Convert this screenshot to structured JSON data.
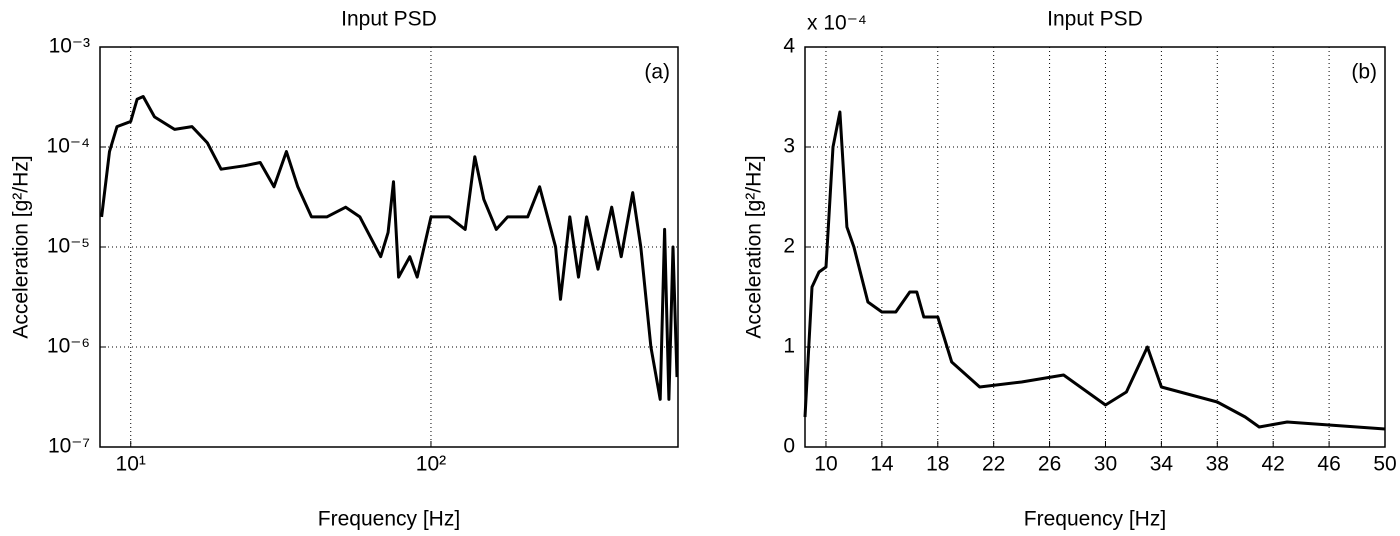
{
  "chart_data": [
    {
      "type": "line",
      "title": "Input PSD",
      "x_label": "Frequency [Hz]",
      "y_label": "Acceleration [g²/Hz]",
      "annotation": "(a)",
      "xscale": "log",
      "yscale": "log",
      "grid": true,
      "color": "#000000",
      "xlim": [
        7.9,
        665
      ],
      "ylim": [
        1e-07,
        0.001
      ],
      "xticks": [
        {
          "value": 10,
          "label": "10¹"
        },
        {
          "value": 100,
          "label": "10²"
        }
      ],
      "yticks": [
        {
          "value": 1e-07,
          "label": "10⁻⁷"
        },
        {
          "value": 1e-06,
          "label": "10⁻⁶"
        },
        {
          "value": 1e-05,
          "label": "10⁻⁵"
        },
        {
          "value": 0.0001,
          "label": "10⁻⁴"
        },
        {
          "value": 0.001,
          "label": "10⁻³"
        }
      ],
      "x": [
        8,
        8.5,
        9,
        10,
        10.5,
        11,
        12,
        14,
        16,
        18,
        20,
        24,
        27,
        30,
        33,
        36,
        40,
        45,
        52,
        58,
        68,
        72,
        75,
        78,
        85,
        90,
        100,
        115,
        130,
        140,
        150,
        165,
        180,
        210,
        230,
        260,
        270,
        290,
        310,
        330,
        360,
        400,
        430,
        470,
        500,
        540,
        580,
        600,
        620,
        640,
        660
      ],
      "values": [
        2e-05,
        9e-05,
        0.00016,
        0.00018,
        0.0003,
        0.00032,
        0.0002,
        0.00015,
        0.00016,
        0.00011,
        6e-05,
        6.5e-05,
        7e-05,
        4e-05,
        9e-05,
        4e-05,
        2e-05,
        2e-05,
        2.5e-05,
        2e-05,
        8e-06,
        1.4e-05,
        4.5e-05,
        5e-06,
        8e-06,
        5e-06,
        2e-05,
        2e-05,
        1.5e-05,
        8e-05,
        3e-05,
        1.5e-05,
        2e-05,
        2e-05,
        4e-05,
        1e-05,
        3e-06,
        2e-05,
        5e-06,
        2e-05,
        6e-06,
        2.5e-05,
        8e-06,
        3.5e-05,
        1e-05,
        1e-06,
        3e-07,
        1.5e-05,
        3e-07,
        1e-05,
        5e-07
      ]
    },
    {
      "type": "line",
      "title": "Input PSD",
      "x_label": "Frequency [Hz]",
      "y_label": "Acceleration [g²/Hz]",
      "annotation": "(b)",
      "y_scale_label": "x 10⁻⁴",
      "xscale": "linear",
      "yscale": "linear",
      "grid": true,
      "color": "#000000",
      "xlim": [
        8.5,
        50
      ],
      "ylim": [
        0,
        4
      ],
      "xticks": [
        10,
        14,
        18,
        22,
        26,
        30,
        34,
        38,
        42,
        46,
        50
      ],
      "yticks": [
        0,
        1,
        2,
        3,
        4
      ],
      "x": [
        8.5,
        9,
        9.5,
        10,
        10.5,
        11,
        11.5,
        12,
        13,
        14,
        15,
        16,
        16.5,
        17,
        18,
        19,
        21,
        24,
        27,
        30,
        31.5,
        33,
        34,
        38,
        40,
        41,
        43,
        46,
        50
      ],
      "values": [
        0.3,
        1.6,
        1.75,
        1.8,
        3.0,
        3.35,
        2.2,
        2.0,
        1.45,
        1.35,
        1.35,
        1.55,
        1.55,
        1.3,
        1.3,
        0.85,
        0.6,
        0.65,
        0.72,
        0.42,
        0.55,
        1.0,
        0.6,
        0.45,
        0.3,
        0.2,
        0.25,
        0.22,
        0.18
      ]
    }
  ]
}
